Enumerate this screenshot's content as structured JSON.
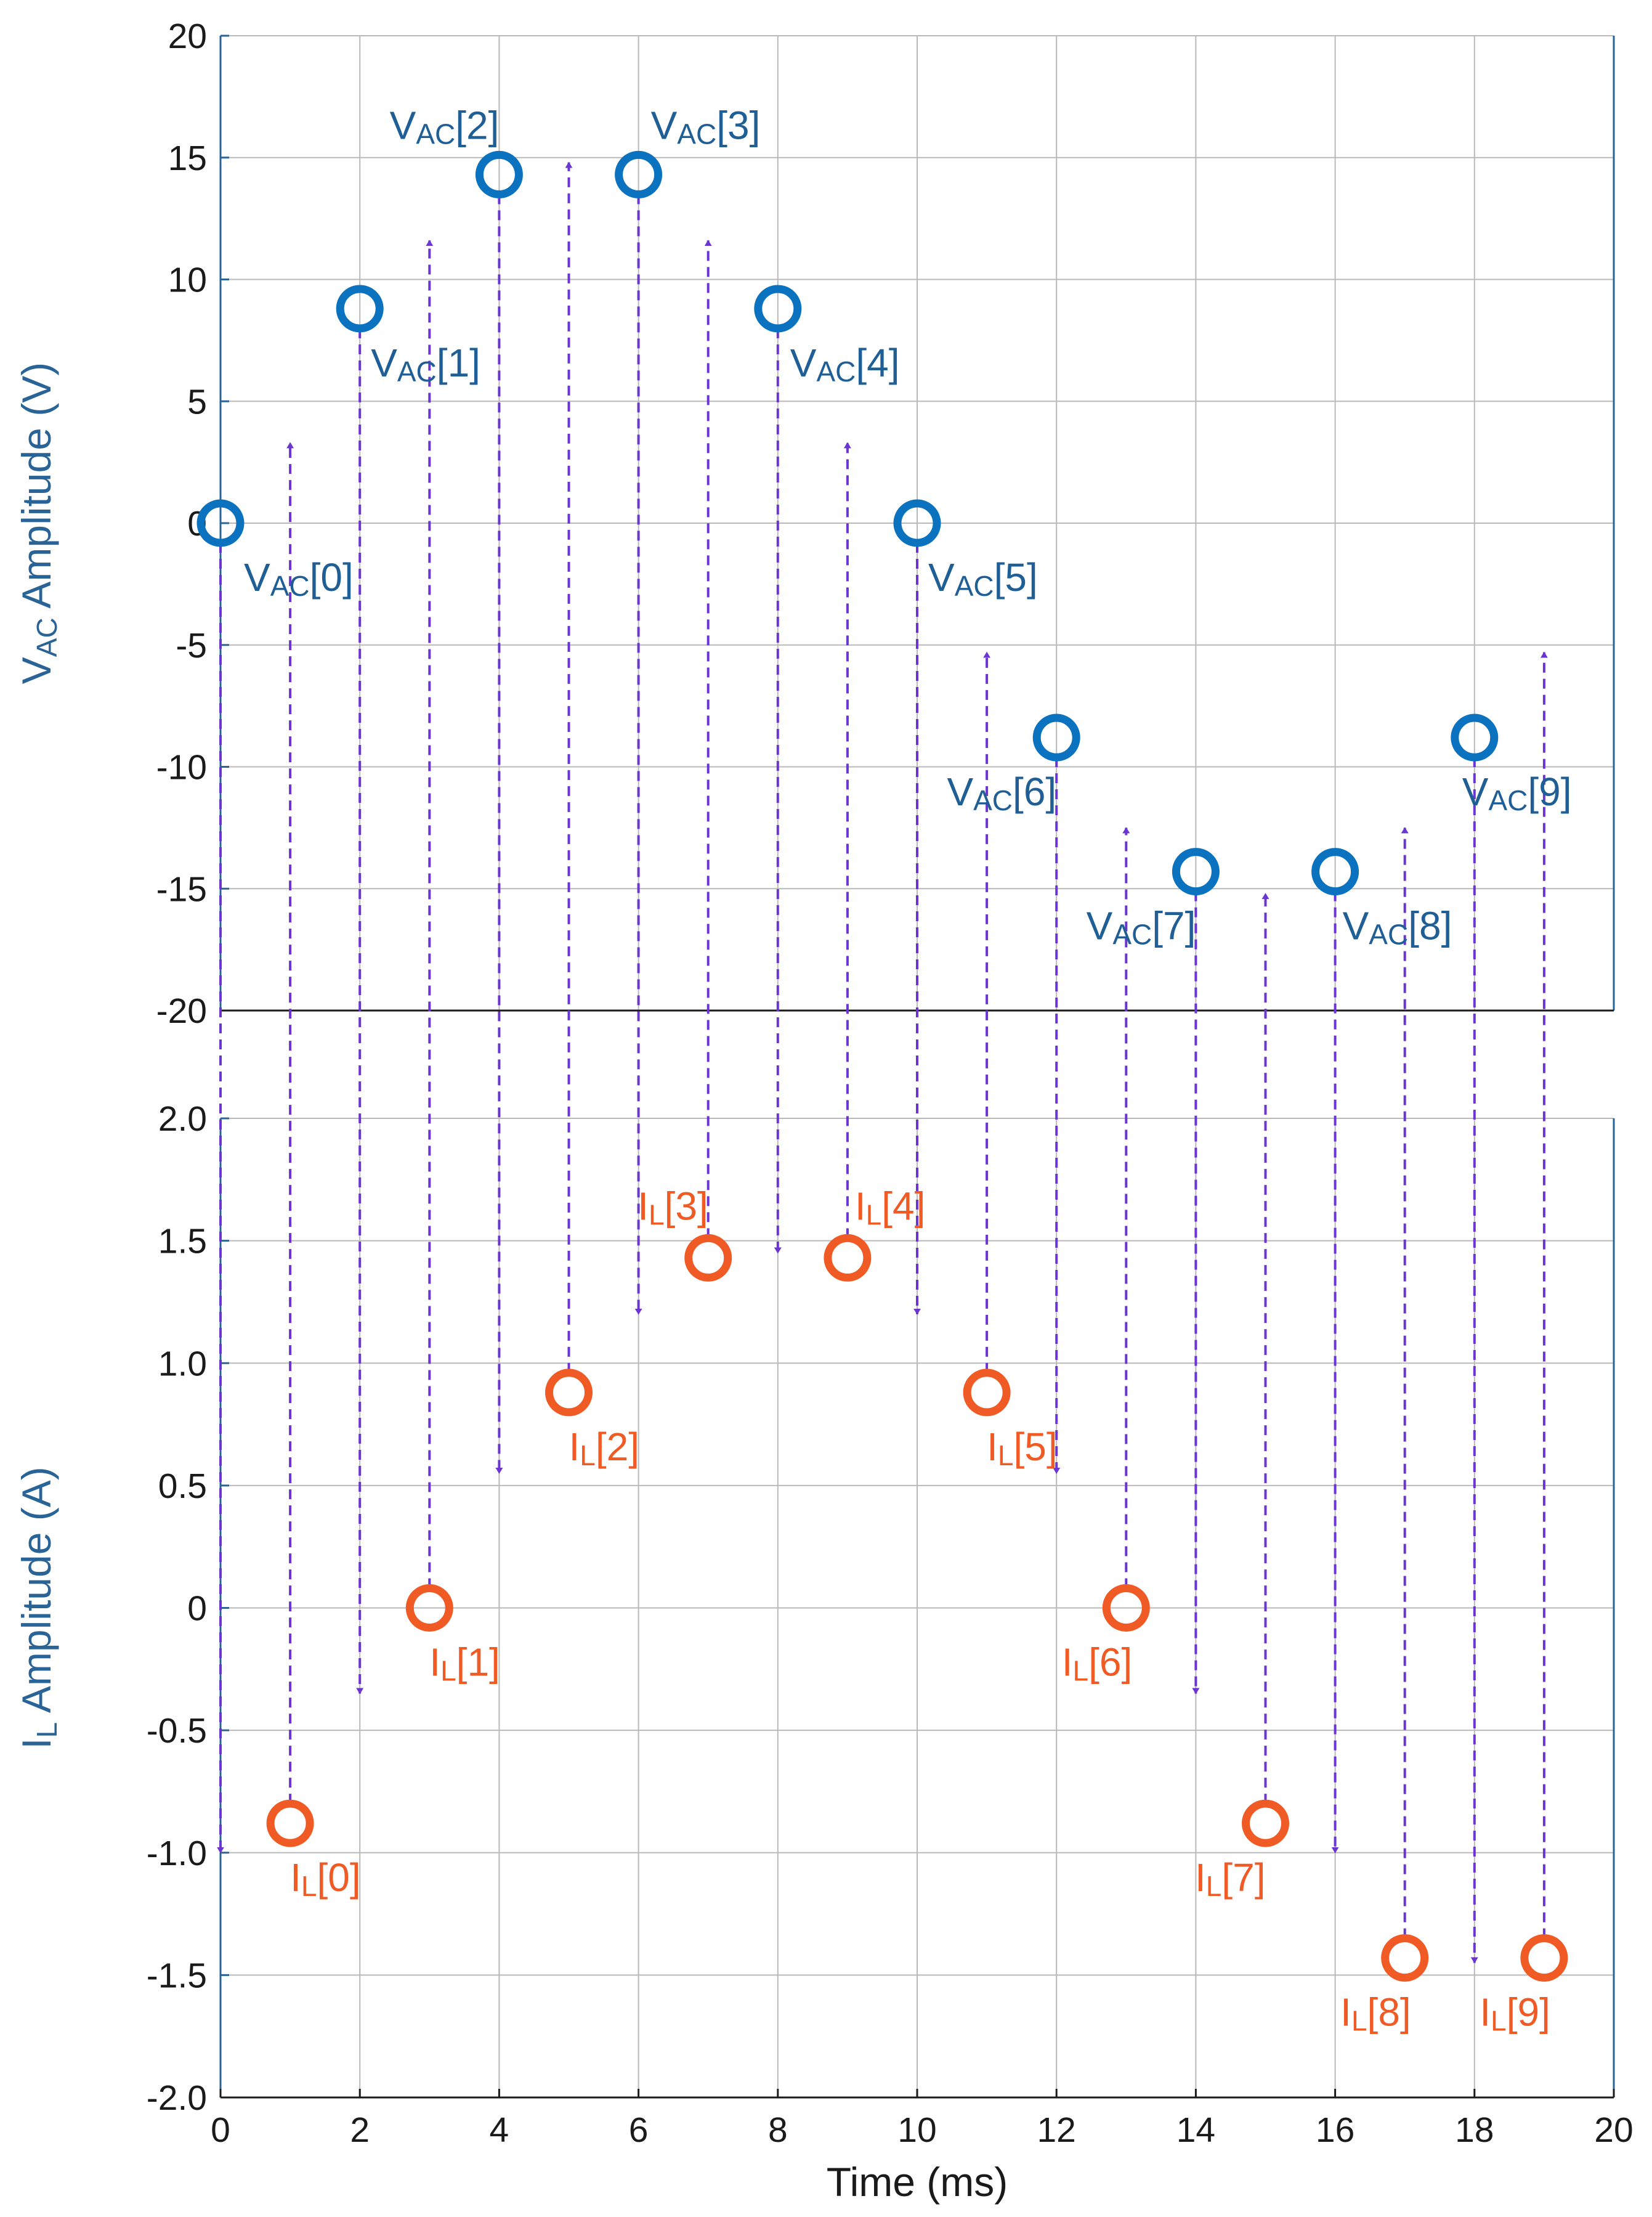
{
  "chart_data": [
    {
      "type": "scatter",
      "xlabel": "",
      "ylabel": "VAC Amplitude (V)",
      "ylabel_main": "V",
      "ylabel_sub": "AC",
      "ylabel_rest": " Amplitude (V)",
      "xlim": [
        0,
        20
      ],
      "ylim": [
        -20,
        20
      ],
      "y_ticks": [
        20,
        15,
        10,
        5,
        0,
        -5,
        -10,
        -15,
        -20
      ],
      "y_tick_labels": [
        "20",
        "15",
        "10",
        "5",
        "0",
        "-5",
        "-10",
        "-15",
        "-20"
      ],
      "grid": true,
      "series": [
        {
          "name": "",
          "color": "#0b72bf",
          "marker": "circle-open",
          "points": [
            {
              "x": 0,
              "y": 0,
              "label_main": "V",
              "label_sub": "AC",
              "label_rest": "[0]"
            },
            {
              "x": 2,
              "y": 8.8,
              "label_main": "V",
              "label_sub": "AC",
              "label_rest": "[1]"
            },
            {
              "x": 4,
              "y": 14.3,
              "label_main": "V",
              "label_sub": "AC",
              "label_rest": "[2]"
            },
            {
              "x": 6,
              "y": 14.3,
              "label_main": "V",
              "label_sub": "AC",
              "label_rest": "[3]"
            },
            {
              "x": 8,
              "y": 8.8,
              "label_main": "V",
              "label_sub": "AC",
              "label_rest": "[4]"
            },
            {
              "x": 10,
              "y": 0,
              "label_main": "V",
              "label_sub": "AC",
              "label_rest": "[5]"
            },
            {
              "x": 12,
              "y": -8.8,
              "label_main": "V",
              "label_sub": "AC",
              "label_rest": "[6]"
            },
            {
              "x": 14,
              "y": -14.3,
              "label_main": "V",
              "label_sub": "AC",
              "label_rest": "[7]"
            },
            {
              "x": 16,
              "y": -14.3,
              "label_main": "V",
              "label_sub": "AC",
              "label_rest": "[8]"
            },
            {
              "x": 18,
              "y": -8.8,
              "label_main": "V",
              "label_sub": "AC",
              "label_rest": "[9]"
            }
          ]
        }
      ]
    },
    {
      "type": "scatter",
      "xlabel": "Time (ms)",
      "ylabel": "IL Amplitude (A)",
      "ylabel_main": "I",
      "ylabel_sub": "L",
      "ylabel_rest": " Amplitude (A)",
      "xlim": [
        0,
        20
      ],
      "ylim": [
        -2.0,
        2.0
      ],
      "x_ticks": [
        0,
        2,
        4,
        6,
        8,
        10,
        12,
        14,
        16,
        18,
        20
      ],
      "x_tick_labels": [
        "0",
        "2",
        "4",
        "6",
        "8",
        "10",
        "12",
        "14",
        "16",
        "18",
        "20"
      ],
      "y_ticks": [
        2.0,
        1.5,
        1.0,
        0.5,
        0,
        -0.5,
        -1.0,
        -1.5,
        -2.0
      ],
      "y_tick_labels": [
        "2.0",
        "1.5",
        "1.0",
        "0.5",
        "0",
        "-0.5",
        "-1.0",
        "-1.5",
        "-2.0"
      ],
      "grid": true,
      "series": [
        {
          "name": "",
          "color": "#f05a24",
          "marker": "circle-open",
          "points": [
            {
              "x": 1,
              "y": -0.88,
              "label_main": "I",
              "label_sub": "L",
              "label_rest": "[0]"
            },
            {
              "x": 3,
              "y": 0,
              "label_main": "I",
              "label_sub": "L",
              "label_rest": "[1]"
            },
            {
              "x": 5,
              "y": 0.88,
              "label_main": "I",
              "label_sub": "L",
              "label_rest": "[2]"
            },
            {
              "x": 7,
              "y": 1.43,
              "label_main": "I",
              "label_sub": "L",
              "label_rest": "[3]"
            },
            {
              "x": 9,
              "y": 1.43,
              "label_main": "I",
              "label_sub": "L",
              "label_rest": "[4]"
            },
            {
              "x": 11,
              "y": 0.88,
              "label_main": "I",
              "label_sub": "L",
              "label_rest": "[5]"
            },
            {
              "x": 13,
              "y": 0,
              "label_main": "I",
              "label_sub": "L",
              "label_rest": "[6]"
            },
            {
              "x": 15,
              "y": -0.88,
              "label_main": "I",
              "label_sub": "L",
              "label_rest": "[7]"
            },
            {
              "x": 17,
              "y": -1.43,
              "label_main": "I",
              "label_sub": "L",
              "label_rest": "[8]"
            },
            {
              "x": 19,
              "y": -1.43,
              "label_main": "I",
              "label_sub": "L",
              "label_rest": "[9]"
            }
          ]
        }
      ]
    }
  ],
  "arrows": {
    "color": "#6a35d0",
    "down": [
      {
        "x": 0,
        "to_i": -1.0
      },
      {
        "x": 2,
        "to_i": -0.35
      },
      {
        "x": 4,
        "to_i": 0.55
      },
      {
        "x": 6,
        "to_i": 1.2
      },
      {
        "x": 8,
        "to_i": 1.45
      },
      {
        "x": 10,
        "to_i": 1.2
      },
      {
        "x": 12,
        "to_i": 0.55
      },
      {
        "x": 14,
        "to_i": -0.35
      },
      {
        "x": 16,
        "to_i": -1.0
      },
      {
        "x": 18,
        "to_i": -1.45
      }
    ],
    "up": [
      {
        "x": 1,
        "to_v": 3.3
      },
      {
        "x": 3,
        "to_v": 11.6
      },
      {
        "x": 5,
        "to_v": 14.8
      },
      {
        "x": 7,
        "to_v": 11.6
      },
      {
        "x": 9,
        "to_v": 3.3
      },
      {
        "x": 11,
        "to_v": -5.3
      },
      {
        "x": 13,
        "to_v": -12.5
      },
      {
        "x": 15,
        "to_v": -15.2
      },
      {
        "x": 17,
        "to_v": -12.5
      },
      {
        "x": 19,
        "to_v": -5.3
      }
    ]
  }
}
